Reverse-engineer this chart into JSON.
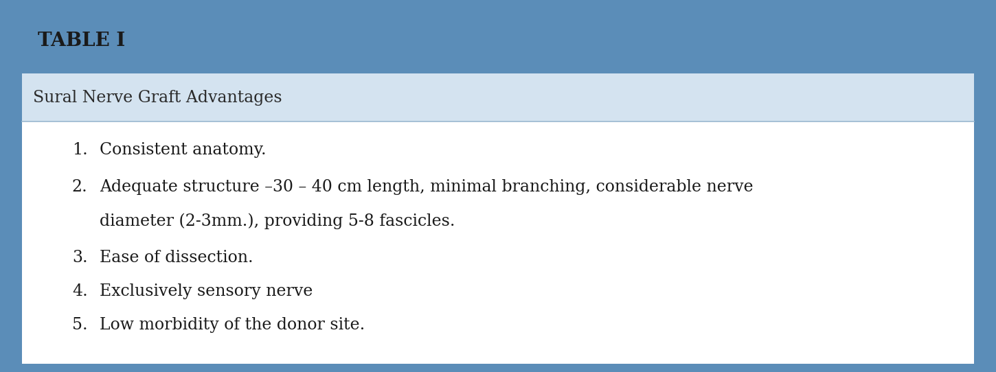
{
  "title": "TABLE I",
  "subtitle": "Sural Nerve Graft Advantages",
  "items": [
    {
      "num": "1.",
      "line1": "Consistent anatomy.",
      "line2": null
    },
    {
      "num": "2.",
      "line1": "Adequate structure –30 – 40 cm length, minimal branching, considerable nerve",
      "line2": "diameter (2-3mm.), providing 5-8 fascicles."
    },
    {
      "num": "3.",
      "line1": "Ease of dissection.",
      "line2": null
    },
    {
      "num": "4.",
      "line1": "Exclusively sensory nerve",
      "line2": null
    },
    {
      "num": "5.",
      "line1": "Low morbidity of the donor site.",
      "line2": null
    }
  ],
  "header_bg": "#5b8db8",
  "subheader_bg": "#d4e3f0",
  "body_bg": "#ffffff",
  "border_color": "#5b8db8",
  "divider_color": "#9ab8d0",
  "header_text_color": "#1a1a1a",
  "subtitle_text_color": "#2a2a2a",
  "body_text_color": "#1a1a1a",
  "header_font_size": 20,
  "subtitle_font_size": 17,
  "body_font_size": 17,
  "fig_width": 14.5,
  "fig_height": 5.42
}
